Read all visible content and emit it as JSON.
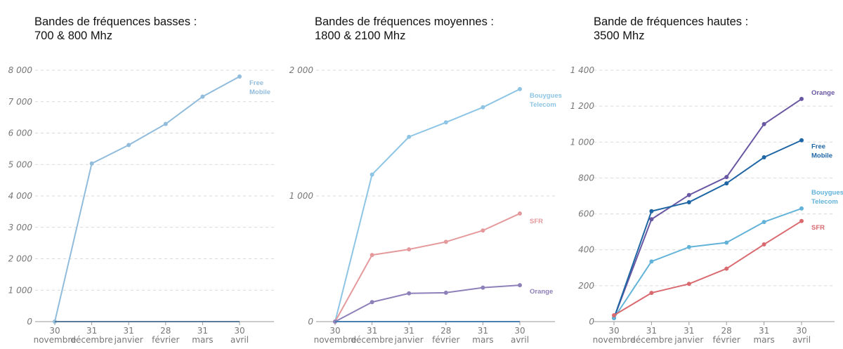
{
  "chart_data": [
    {
      "type": "line",
      "title_line1": "Bandes de fréquences basses :",
      "title_line2": "700 & 800 Mhz",
      "x": [
        [
          "30",
          "novembre"
        ],
        [
          "31",
          "décembre"
        ],
        [
          "31",
          "janvier"
        ],
        [
          "28",
          "février"
        ],
        [
          "31",
          "mars"
        ],
        [
          "30",
          "avril"
        ]
      ],
      "yticks": [
        "0",
        "1 000",
        "2 000",
        "3 000",
        "4 000",
        "5 000",
        "6 000",
        "7 000",
        "8 000"
      ],
      "ylim": [
        0,
        8000
      ],
      "grid": true,
      "series": [
        {
          "name": "",
          "label_lines": [
            "Free",
            "Mobile"
          ],
          "color": "#91bcdc",
          "values": [
            0,
            5030,
            5620,
            6290,
            7160,
            7800
          ]
        },
        {
          "name": "",
          "label_lines": [],
          "color": "#5a7c99",
          "values": [
            0,
            0,
            0,
            0,
            0,
            0
          ]
        }
      ]
    },
    {
      "type": "line",
      "title_line1": "Bandes de fréquences moyennes :",
      "title_line2": "1800 & 2100 Mhz",
      "x": [
        [
          "30",
          "novembre"
        ],
        [
          "31",
          "décembre"
        ],
        [
          "31",
          "janvier"
        ],
        [
          "28",
          "février"
        ],
        [
          "31",
          "mars"
        ],
        [
          "30",
          "avril"
        ]
      ],
      "yticks": [
        "0",
        "1 000",
        "2 000"
      ],
      "ylim": [
        0,
        2000
      ],
      "grid": true,
      "series": [
        {
          "name": "",
          "label_lines": [
            "Bouygues",
            "Telecom"
          ],
          "color": "#8ec5e4",
          "values": [
            0,
            1170,
            1470,
            1585,
            1705,
            1850
          ]
        },
        {
          "name": "",
          "label_lines": [
            "SFR"
          ],
          "color": "#e49a9c",
          "values": [
            0,
            530,
            575,
            635,
            725,
            860
          ]
        },
        {
          "name": "",
          "label_lines": [
            "Orange"
          ],
          "color": "#8e80b8",
          "values": [
            0,
            155,
            225,
            230,
            270,
            290
          ]
        },
        {
          "name": "",
          "label_lines": [],
          "color": "#4a7fb0",
          "values": [
            0,
            0,
            0,
            0,
            0,
            0
          ]
        }
      ]
    },
    {
      "type": "line",
      "title_line1": "Bande de fréquences hautes :",
      "title_line2": "3500 Mhz",
      "x": [
        [
          "30",
          "novembre"
        ],
        [
          "31",
          "décembre"
        ],
        [
          "31",
          "janvier"
        ],
        [
          "28",
          "février"
        ],
        [
          "31",
          "mars"
        ],
        [
          "30",
          "avril"
        ]
      ],
      "yticks": [
        "0",
        "200",
        "400",
        "600",
        "800",
        "1 000",
        "1 200",
        "1 400"
      ],
      "ylim": [
        0,
        1400
      ],
      "grid": true,
      "series": [
        {
          "name": "",
          "label_lines": [
            "Orange"
          ],
          "color": "#6a57a3",
          "values": [
            20,
            570,
            705,
            805,
            1100,
            1240
          ]
        },
        {
          "name": "",
          "label_lines": [
            "Free",
            "Mobile"
          ],
          "color": "#1f66a5",
          "values": [
            20,
            615,
            665,
            770,
            915,
            1010
          ]
        },
        {
          "name": "",
          "label_lines": [
            "Bouygues",
            "Telecom"
          ],
          "color": "#63b3d9",
          "values": [
            20,
            335,
            415,
            440,
            555,
            630
          ]
        },
        {
          "name": "",
          "label_lines": [
            "SFR"
          ],
          "color": "#d96a70",
          "values": [
            35,
            160,
            210,
            295,
            430,
            560
          ]
        }
      ]
    }
  ]
}
